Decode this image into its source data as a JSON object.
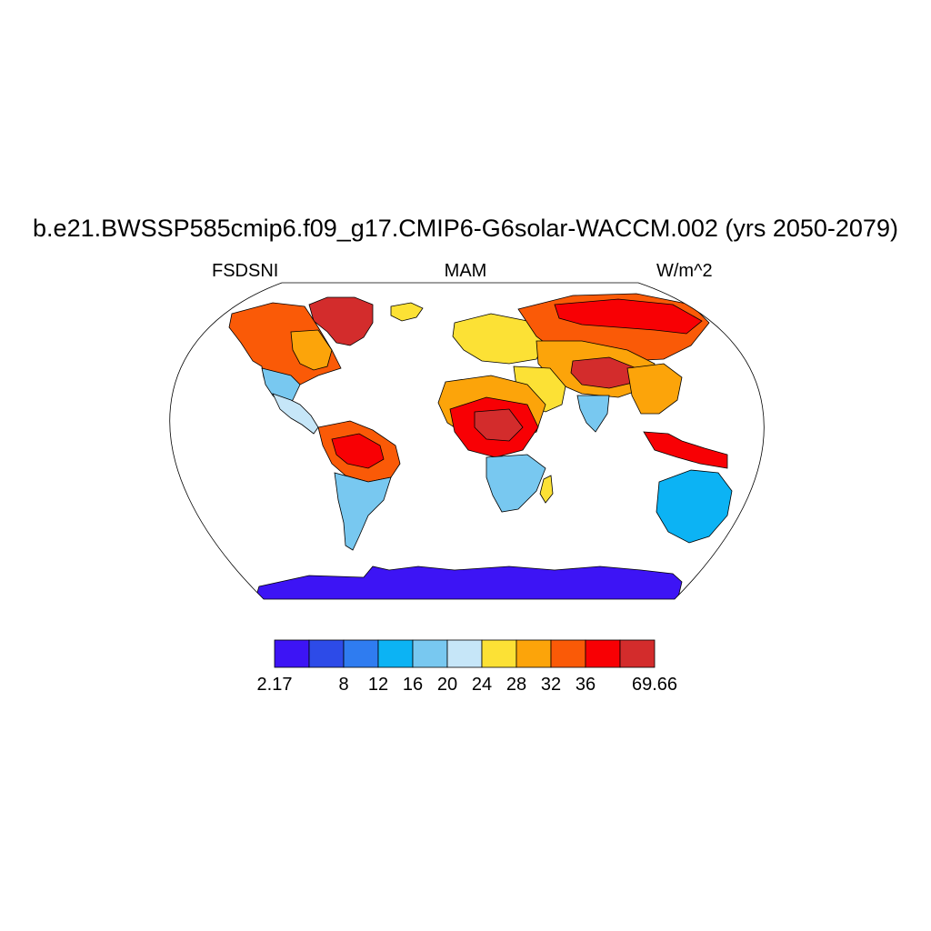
{
  "title": "b.e21.BWSSP585cmip6.f09_g17.CMIP6-G6solar-WACCM.002 (yrs 2050-2079)",
  "left_string": "FSDSNI",
  "center_string": "MAM",
  "right_string": "W/m^2",
  "colorbar": {
    "colors": [
      "#3d14f5",
      "#2d4be8",
      "#2f7cf0",
      "#0cb3f4",
      "#78c8f0",
      "#c6e6f8",
      "#fce135",
      "#fca40a",
      "#fa5a07",
      "#f80004",
      "#d32c2c"
    ],
    "labels": [
      "2.17",
      "8",
      "12",
      "16",
      "20",
      "24",
      "28",
      "32",
      "36",
      "69.66"
    ],
    "label_boundaries": [
      0,
      2,
      3,
      4,
      5,
      6,
      7,
      8,
      9,
      11
    ]
  },
  "map_regions": [
    {
      "name": "greenland",
      "color": "#d32c2c"
    },
    {
      "name": "north-america",
      "color": "#fa5a07"
    },
    {
      "name": "canada-east",
      "color": "#fca40a"
    },
    {
      "name": "usa-southwest",
      "color": "#78c8f0"
    },
    {
      "name": "mexico",
      "color": "#c6e6f8"
    },
    {
      "name": "south-america-north",
      "color": "#fa5a07"
    },
    {
      "name": "amazon",
      "color": "#f80004"
    },
    {
      "name": "south-america-south",
      "color": "#78c8f0"
    },
    {
      "name": "europe",
      "color": "#fce135"
    },
    {
      "name": "russia",
      "color": "#fa5a07"
    },
    {
      "name": "siberia",
      "color": "#f80004"
    },
    {
      "name": "central-asia",
      "color": "#fca40a"
    },
    {
      "name": "tibet",
      "color": "#d32c2c"
    },
    {
      "name": "middle-east",
      "color": "#fce135"
    },
    {
      "name": "india",
      "color": "#78c8f0"
    },
    {
      "name": "east-asia",
      "color": "#fca40a"
    },
    {
      "name": "north-africa",
      "color": "#fca40a"
    },
    {
      "name": "sahel",
      "color": "#f80004"
    },
    {
      "name": "sahara-core",
      "color": "#d32c2c"
    },
    {
      "name": "southern-africa",
      "color": "#78c8f0"
    },
    {
      "name": "indonesia",
      "color": "#f80004"
    },
    {
      "name": "australia",
      "color": "#0cb3f4"
    },
    {
      "name": "antarctica",
      "color": "#3d14f5"
    }
  ]
}
